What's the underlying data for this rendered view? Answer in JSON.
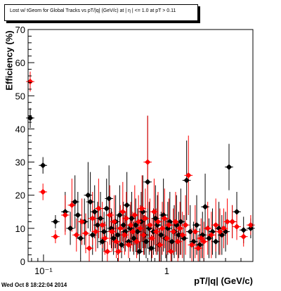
{
  "chart_data": {
    "type": "scatter",
    "title": "Lost w/ tGeom for Global Tracks vs pT/|q| (GeV/c) at |  η | <= 1.0 at pT > 0.11",
    "xlabel": "pT/|q| (GeV/c)",
    "ylabel": "Efficiency (%)",
    "x_scale": "log",
    "xlim": [
      0.075,
      5.0
    ],
    "ylim": [
      0,
      70
    ],
    "grid": false,
    "yticks": [
      0,
      10,
      20,
      30,
      40,
      50,
      60,
      70
    ],
    "ytick_labels": [
      "0",
      "10",
      "20",
      "30",
      "40",
      "50",
      "60",
      "70"
    ],
    "xticks": [
      0.1,
      1
    ],
    "xtick_labels": [
      "10⁻¹",
      "1"
    ],
    "series": [
      {
        "color": "#000000",
        "marker": "diamond",
        "points": [
          {
            "x": 0.078,
            "y": 43.3,
            "yerr": 3
          },
          {
            "x": 0.099,
            "y": 29,
            "yerr": 2.5
          },
          {
            "x": 0.125,
            "y": 12,
            "yerr": 2
          },
          {
            "x": 0.15,
            "y": 15,
            "yerr": 6
          },
          {
            "x": 0.165,
            "y": 10,
            "yerr": 5
          },
          {
            "x": 0.18,
            "y": 18,
            "yerr": 8
          },
          {
            "x": 0.19,
            "y": 14,
            "yerr": 7
          },
          {
            "x": 0.2,
            "y": 7,
            "yerr": 6
          },
          {
            "x": 0.215,
            "y": 12,
            "yerr": 7
          },
          {
            "x": 0.23,
            "y": 20,
            "yerr": 10
          },
          {
            "x": 0.24,
            "y": 18,
            "yerr": 9
          },
          {
            "x": 0.25,
            "y": 8,
            "yerr": 6
          },
          {
            "x": 0.26,
            "y": 15,
            "yerr": 8
          },
          {
            "x": 0.275,
            "y": 11,
            "yerr": 7
          },
          {
            "x": 0.29,
            "y": 13,
            "yerr": 8
          },
          {
            "x": 0.3,
            "y": 6,
            "yerr": 5
          },
          {
            "x": 0.31,
            "y": 9,
            "yerr": 6
          },
          {
            "x": 0.325,
            "y": 16,
            "yerr": 9
          },
          {
            "x": 0.34,
            "y": 19,
            "yerr": 10
          },
          {
            "x": 0.355,
            "y": 10,
            "yerr": 6
          },
          {
            "x": 0.37,
            "y": 7,
            "yerr": 5
          },
          {
            "x": 0.385,
            "y": 12,
            "yerr": 8
          },
          {
            "x": 0.4,
            "y": 8,
            "yerr": 6
          },
          {
            "x": 0.415,
            "y": 14,
            "yerr": 9
          },
          {
            "x": 0.43,
            "y": 5,
            "yerr": 4
          },
          {
            "x": 0.445,
            "y": 11,
            "yerr": 7
          },
          {
            "x": 0.46,
            "y": 9,
            "yerr": 6
          },
          {
            "x": 0.475,
            "y": 17,
            "yerr": 10
          },
          {
            "x": 0.49,
            "y": 6,
            "yerr": 5
          },
          {
            "x": 0.505,
            "y": 10,
            "yerr": 7
          },
          {
            "x": 0.52,
            "y": 13,
            "yerr": 8
          },
          {
            "x": 0.54,
            "y": 7,
            "yerr": 5
          },
          {
            "x": 0.56,
            "y": 11,
            "yerr": 8
          },
          {
            "x": 0.58,
            "y": 9,
            "yerr": 7
          },
          {
            "x": 0.6,
            "y": 3,
            "yerr": 3
          },
          {
            "x": 0.62,
            "y": 12,
            "yerr": 9
          },
          {
            "x": 0.64,
            "y": 15,
            "yerr": 11
          },
          {
            "x": 0.66,
            "y": 8,
            "yerr": 6
          },
          {
            "x": 0.68,
            "y": 6,
            "yerr": 5
          },
          {
            "x": 0.7,
            "y": 24,
            "yerr": 20
          },
          {
            "x": 0.72,
            "y": 10,
            "yerr": 8
          },
          {
            "x": 0.75,
            "y": 4,
            "yerr": 4
          },
          {
            "x": 0.78,
            "y": 9,
            "yerr": 7
          },
          {
            "x": 0.81,
            "y": 13,
            "yerr": 10
          },
          {
            "x": 0.84,
            "y": 11,
            "yerr": 9
          },
          {
            "x": 0.87,
            "y": 5,
            "yerr": 5
          },
          {
            "x": 0.9,
            "y": 8,
            "yerr": 7
          },
          {
            "x": 0.94,
            "y": 14,
            "yerr": 11
          },
          {
            "x": 0.98,
            "y": 7,
            "yerr": 6
          },
          {
            "x": 1.02,
            "y": 10,
            "yerr": 8
          },
          {
            "x": 1.06,
            "y": 12,
            "yerr": 9
          },
          {
            "x": 1.1,
            "y": 6,
            "yerr": 6
          },
          {
            "x": 1.15,
            "y": 9,
            "yerr": 8
          },
          {
            "x": 1.2,
            "y": 11,
            "yerr": 9
          },
          {
            "x": 1.25,
            "y": 8,
            "yerr": 7
          },
          {
            "x": 1.3,
            "y": 12,
            "yerr": 10
          },
          {
            "x": 1.38,
            "y": 7,
            "yerr": 7
          },
          {
            "x": 1.45,
            "y": 24.5,
            "yerr": 12
          },
          {
            "x": 1.55,
            "y": 9,
            "yerr": 8
          },
          {
            "x": 1.65,
            "y": 6,
            "yerr": 6
          },
          {
            "x": 1.75,
            "y": 11,
            "yerr": 9
          },
          {
            "x": 1.85,
            "y": 5,
            "yerr": 5
          },
          {
            "x": 1.95,
            "y": 8,
            "yerr": 7
          },
          {
            "x": 2.05,
            "y": 16.5,
            "yerr": 10
          },
          {
            "x": 2.2,
            "y": 7,
            "yerr": 6
          },
          {
            "x": 2.35,
            "y": 9,
            "yerr": 7
          },
          {
            "x": 2.5,
            "y": 6,
            "yerr": 5
          },
          {
            "x": 2.65,
            "y": 10,
            "yerr": 8
          },
          {
            "x": 2.8,
            "y": 8,
            "yerr": 6
          },
          {
            "x": 3.0,
            "y": 9,
            "yerr": 6
          },
          {
            "x": 3.2,
            "y": 28.5,
            "yerr": 7
          },
          {
            "x": 3.4,
            "y": 12,
            "yerr": 5
          },
          {
            "x": 3.7,
            "y": 15,
            "yerr": 6
          },
          {
            "x": 4.2,
            "y": 9.5,
            "yerr": 4
          },
          {
            "x": 4.8,
            "y": 10,
            "yerr": 3
          }
        ]
      },
      {
        "color": "#ff0000",
        "marker": "diamond",
        "points": [
          {
            "x": 0.078,
            "y": 54.3,
            "yerr": 3
          },
          {
            "x": 0.099,
            "y": 21,
            "yerr": 2.5
          },
          {
            "x": 0.125,
            "y": 7.5,
            "yerr": 2
          },
          {
            "x": 0.15,
            "y": 14,
            "yerr": 6
          },
          {
            "x": 0.17,
            "y": 17,
            "yerr": 8
          },
          {
            "x": 0.185,
            "y": 8,
            "yerr": 5
          },
          {
            "x": 0.205,
            "y": 12,
            "yerr": 7
          },
          {
            "x": 0.22,
            "y": 8.5,
            "yerr": 6
          },
          {
            "x": 0.235,
            "y": 4,
            "yerr": 4
          },
          {
            "x": 0.25,
            "y": 13,
            "yerr": 8
          },
          {
            "x": 0.265,
            "y": 9,
            "yerr": 6
          },
          {
            "x": 0.28,
            "y": 16,
            "yerr": 9
          },
          {
            "x": 0.3,
            "y": 11,
            "yerr": 7
          },
          {
            "x": 0.315,
            "y": 7,
            "yerr": 5
          },
          {
            "x": 0.33,
            "y": 3,
            "yerr": 3
          },
          {
            "x": 0.345,
            "y": 14,
            "yerr": 9
          },
          {
            "x": 0.36,
            "y": 9,
            "yerr": 6
          },
          {
            "x": 0.375,
            "y": 12,
            "yerr": 8
          },
          {
            "x": 0.39,
            "y": 6,
            "yerr": 5
          },
          {
            "x": 0.405,
            "y": 3,
            "yerr": 3
          },
          {
            "x": 0.42,
            "y": 10,
            "yerr": 7
          },
          {
            "x": 0.44,
            "y": 15,
            "yerr": 9
          },
          {
            "x": 0.455,
            "y": 8,
            "yerr": 6
          },
          {
            "x": 0.47,
            "y": 13,
            "yerr": 8
          },
          {
            "x": 0.49,
            "y": 5,
            "yerr": 4
          },
          {
            "x": 0.51,
            "y": 11,
            "yerr": 7
          },
          {
            "x": 0.53,
            "y": 9,
            "yerr": 6
          },
          {
            "x": 0.55,
            "y": 14,
            "yerr": 9
          },
          {
            "x": 0.57,
            "y": 6,
            "yerr": 5
          },
          {
            "x": 0.59,
            "y": 12,
            "yerr": 8
          },
          {
            "x": 0.61,
            "y": 10,
            "yerr": 7
          },
          {
            "x": 0.63,
            "y": 16,
            "yerr": 10
          },
          {
            "x": 0.65,
            "y": 8,
            "yerr": 6
          },
          {
            "x": 0.67,
            "y": 13,
            "yerr": 9
          },
          {
            "x": 0.7,
            "y": 30,
            "yerr": 14
          },
          {
            "x": 0.73,
            "y": 11,
            "yerr": 8
          },
          {
            "x": 0.76,
            "y": 7,
            "yerr": 6
          },
          {
            "x": 0.79,
            "y": 15,
            "yerr": 10
          },
          {
            "x": 0.82,
            "y": 9,
            "yerr": 7
          },
          {
            "x": 0.85,
            "y": 12,
            "yerr": 9
          },
          {
            "x": 0.88,
            "y": 5,
            "yerr": 5
          },
          {
            "x": 0.92,
            "y": 10,
            "yerr": 8
          },
          {
            "x": 0.96,
            "y": 13,
            "yerr": 9
          },
          {
            "x": 1.0,
            "y": 7,
            "yerr": 6
          },
          {
            "x": 1.04,
            "y": 11,
            "yerr": 8
          },
          {
            "x": 1.08,
            "y": 3,
            "yerr": 3
          },
          {
            "x": 1.13,
            "y": 9,
            "yerr": 7
          },
          {
            "x": 1.18,
            "y": 12,
            "yerr": 9
          },
          {
            "x": 1.23,
            "y": 6,
            "yerr": 6
          },
          {
            "x": 1.28,
            "y": 10,
            "yerr": 8
          },
          {
            "x": 1.34,
            "y": 8,
            "yerr": 7
          },
          {
            "x": 1.42,
            "y": 11,
            "yerr": 9
          },
          {
            "x": 1.5,
            "y": 26,
            "yerr": 12
          },
          {
            "x": 1.6,
            "y": 5,
            "yerr": 5
          },
          {
            "x": 1.7,
            "y": 9,
            "yerr": 8
          },
          {
            "x": 1.8,
            "y": 4,
            "yerr": 4
          },
          {
            "x": 1.9,
            "y": 7,
            "yerr": 6
          },
          {
            "x": 2.0,
            "y": 6,
            "yerr": 6
          },
          {
            "x": 2.15,
            "y": 10,
            "yerr": 8
          },
          {
            "x": 2.3,
            "y": 8,
            "yerr": 7
          },
          {
            "x": 2.5,
            "y": 11,
            "yerr": 8
          },
          {
            "x": 2.7,
            "y": 9,
            "yerr": 7
          },
          {
            "x": 2.9,
            "y": 10,
            "yerr": 6
          },
          {
            "x": 3.1,
            "y": 12,
            "yerr": 7
          },
          {
            "x": 3.4,
            "y": 12,
            "yerr": 5
          },
          {
            "x": 3.7,
            "y": 10.5,
            "yerr": 4
          },
          {
            "x": 4.2,
            "y": 7.5,
            "yerr": 3
          },
          {
            "x": 4.8,
            "y": 11,
            "yerr": 3
          }
        ]
      }
    ]
  },
  "timestamp": "Wed Oct  8 18:22:04 2014"
}
